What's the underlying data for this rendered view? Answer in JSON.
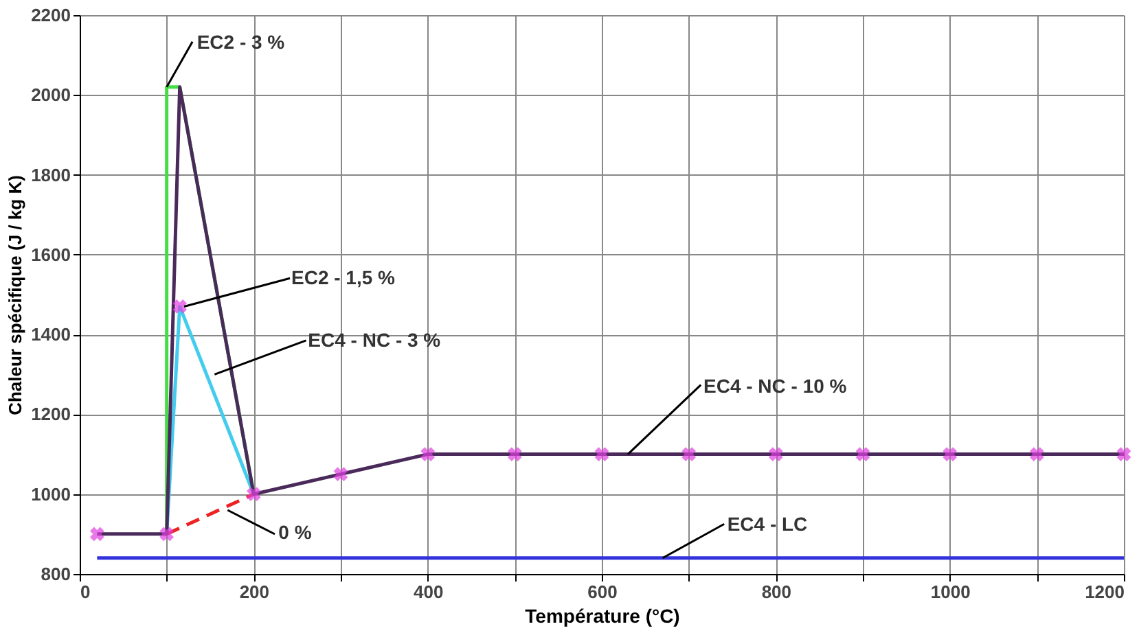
{
  "chart_data": {
    "type": "line",
    "xlabel": "Température (°C)",
    "ylabel": "Chaleur spécifique (J / kg K)",
    "xlim": [
      0,
      1200
    ],
    "ylim": [
      800,
      2200
    ],
    "xticks": [
      0,
      {
        "value": 100,
        "label": null
      },
      200,
      {
        "value": 300,
        "label": null
      },
      400,
      {
        "value": 500,
        "label": null
      },
      600,
      {
        "value": 700,
        "label": null
      },
      800,
      {
        "value": 900,
        "label": null
      },
      1000,
      {
        "value": 1100,
        "label": null
      },
      1200
    ],
    "yticks": [
      800,
      1000,
      1200,
      1400,
      1600,
      1800,
      2000,
      2200
    ],
    "grid": true,
    "legend": false,
    "series": [
      {
        "color": "#3333dd",
        "line_style": "solid",
        "x": [
          20,
          1200
        ],
        "values": [
          840,
          840
        ]
      },
      {
        "color": "#44dd44",
        "line_style": "solid",
        "x": [
          100,
          100,
          115,
          200
        ],
        "values": [
          900,
          2020,
          2020,
          1000
        ]
      },
      {
        "color": "#44ccee",
        "line_style": "solid",
        "x": [
          100,
          115,
          200
        ],
        "values": [
          900,
          1470,
          1000
        ]
      },
      {
        "color": "#ee2222",
        "line_style": "dashed",
        "x": [
          100,
          200
        ],
        "values": [
          900,
          1000
        ]
      },
      {
        "color": "#4a2a5a",
        "line_style": "solid",
        "x": [
          20,
          100,
          115,
          200,
          300,
          400,
          500,
          600,
          700,
          800,
          900,
          1000,
          1100,
          1200
        ],
        "values": [
          900,
          900,
          2020,
          1000,
          1050,
          1100,
          1100,
          1100,
          1100,
          1100,
          1100,
          1100,
          1100,
          1100
        ]
      },
      {
        "type": "scatter",
        "color": "#e040e0",
        "marker": "cross",
        "x": [
          20,
          100,
          115,
          200,
          300,
          400,
          500,
          600,
          700,
          800,
          900,
          1000,
          1100,
          1200
        ],
        "values": [
          900,
          900,
          1470,
          1000,
          1050,
          1100,
          1100,
          1100,
          1100,
          1100,
          1100,
          1100,
          1100,
          1100
        ]
      }
    ],
    "annotations": [
      {
        "text": "EC2 - 3 %",
        "x": 100,
        "y": 2020
      },
      {
        "text": "EC2 - 1,5 %",
        "x": 120,
        "y": 1470
      },
      {
        "text": "EC4 - NC - 3 %",
        "x": 155,
        "y": 1300
      },
      {
        "text": "EC4 - NC - 10 %",
        "x": 630,
        "y": 1100
      },
      {
        "text": "0 %",
        "x": 170,
        "y": 960
      },
      {
        "text": "EC4 - LC",
        "x": 670,
        "y": 840
      }
    ]
  }
}
